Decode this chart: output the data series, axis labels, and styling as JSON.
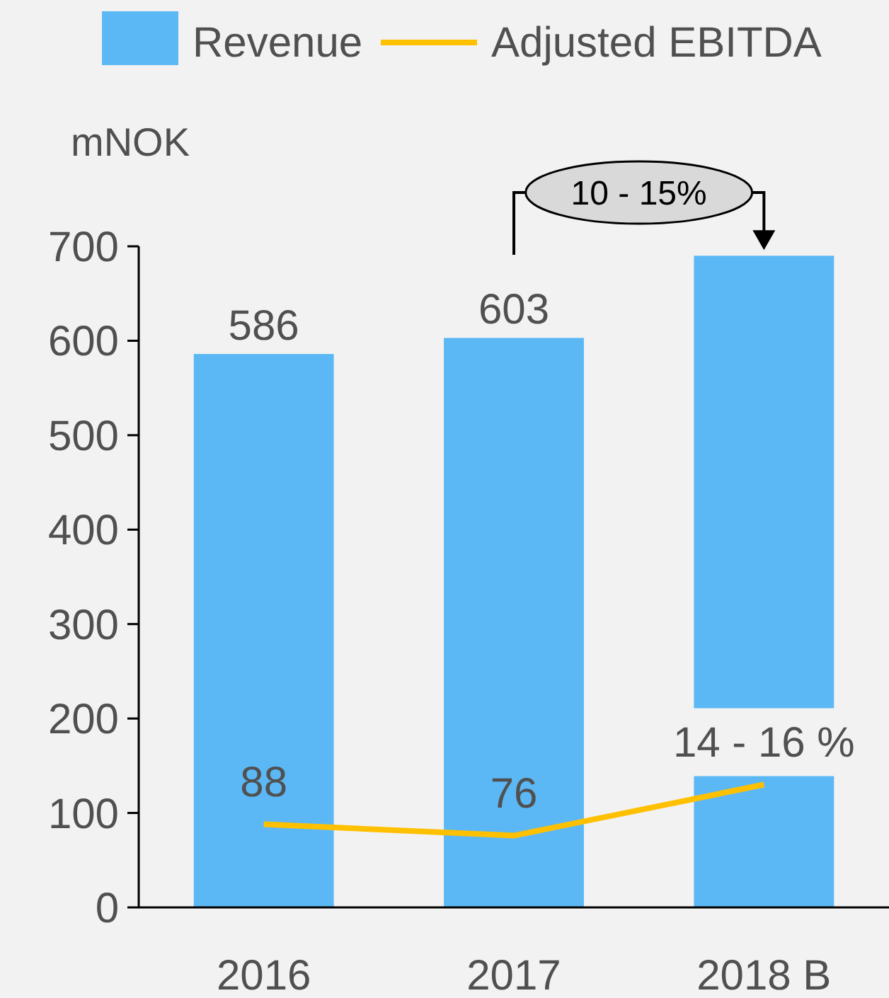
{
  "chart_data": {
    "type": "bar",
    "ylabel": "mNOK",
    "categories": [
      "2016",
      "2017",
      "2018 B"
    ],
    "series": [
      {
        "name": "Revenue",
        "color": "#5bb8f5",
        "values": [
          586,
          603,
          690
        ],
        "value_labels": [
          "586",
          "603",
          null
        ]
      },
      {
        "name": "Adjusted EBITDA",
        "type": "line",
        "color": "#ffc000",
        "values": [
          88,
          76,
          130
        ],
        "value_labels": [
          "88",
          "76",
          null
        ]
      }
    ],
    "ylim": [
      0,
      700
    ],
    "yticks": [
      0,
      100,
      200,
      300,
      400,
      500,
      600,
      700
    ],
    "legend": "top",
    "grid": false,
    "marker": "none",
    "line_style": "solid",
    "annotations": [
      "10 - 15%",
      {
        "text": "14 - 16 %",
        "x": "2018 B",
        "y": 130
      }
    ]
  }
}
